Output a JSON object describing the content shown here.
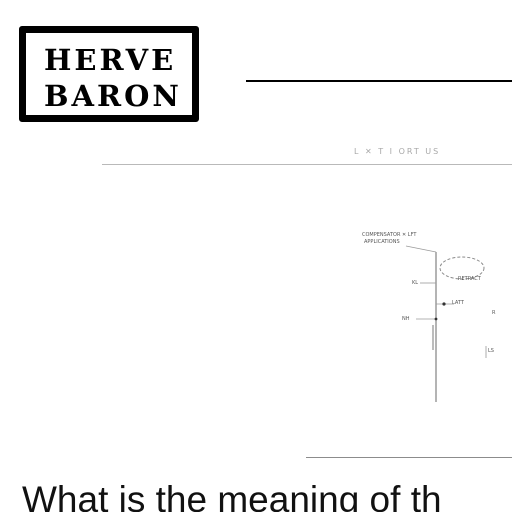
{
  "logo": {
    "line1": "HERVE",
    "line2": "BARON"
  },
  "caption": {
    "faint_text": "L ✕ T   I   ORT   US"
  },
  "diagram": {
    "labels": {
      "top_left": "COMPENSATOR   ✕   LFT",
      "top_left_2": "APPLICATIONS",
      "left_mid": "KL",
      "mid_right": "RETRACT",
      "center": "LATT",
      "left_low": "NH",
      "right_low": "R",
      "right_low_2": "LS"
    }
  },
  "question": {
    "text": "What is the meaning of th"
  }
}
